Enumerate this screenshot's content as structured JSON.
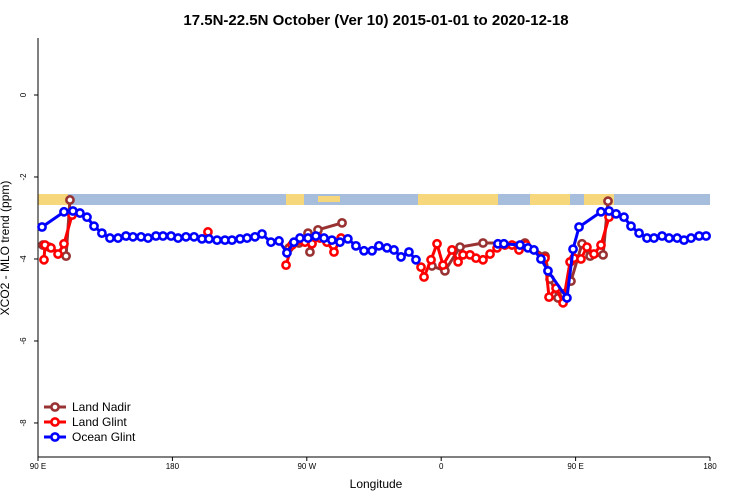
{
  "chart_data": {
    "type": "line",
    "title": "17.5N-22.5N October (Ver 10)   2015-01-01 to 2020-12-18",
    "x_label": "Longitude",
    "y_label": "XCO2 - MLO trend (ppm)",
    "xlim": [
      90,
      540
    ],
    "xticks": [
      {
        "value": 90,
        "label": "90 E"
      },
      180,
      {
        "value": 270,
        "label": "90 W"
      },
      {
        "value": 360,
        "label": "0"
      },
      {
        "value": 450,
        "label": "90 E"
      },
      {
        "value": 540,
        "label": "180"
      }
    ],
    "ylim": [
      -8.83,
      1.39
    ],
    "yticks": [
      0,
      -2,
      -4,
      -6,
      -8
    ],
    "grid": false,
    "legend": "bottom-left",
    "series": [
      {
        "name": "Land Nadir",
        "color": "#993333",
        "x": [
          93.3,
          97.4,
          108.8,
          111.4,
          null,
          258.1,
          264.8,
          270.8,
          272.1,
          277.5,
          293.6,
          null,
          353.8,
          362.5,
          372.6,
          388,
          416.1,
          429.5,
          432.9,
          438.2,
          442.2,
          446.9,
          454.3,
          459.7,
          468.4,
          471.7
        ],
        "values": [
          -3.66,
          -3.71,
          -3.93,
          -2.56,
          null,
          -3.73,
          -3.61,
          -3.37,
          -3.83,
          -3.29,
          -3.12,
          null,
          -4.17,
          -4.29,
          -3.71,
          -3.61,
          -3.61,
          -3.93,
          -4.49,
          -4.95,
          -4.85,
          -4.54,
          -3.63,
          -3.93,
          -3.9,
          -2.59
        ]
      },
      {
        "name": "Land Glint",
        "color": "#ff0000",
        "x": [
          94,
          94.7,
          98.7,
          103.4,
          107.4,
          112.8,
          null,
          203.8,
          null,
          256.1,
          260.1,
          268.8,
          273.5,
          278.8,
          283.5,
          288.2,
          292.9,
          null,
          346.5,
          348.5,
          353.2,
          357.2,
          361.2,
          367.2,
          371.3,
          374.6,
          379.3,
          383.3,
          388,
          392.7,
          397.4,
          402.7,
          407.4,
          412.1,
          416.8,
          429.5,
          432.2,
          436.9,
          441.6,
          446.3,
          448.9,
          453.6,
          457.6,
          462.3,
          467,
          472.4
        ],
        "values": [
          -4.02,
          -3.66,
          -3.73,
          -3.88,
          -3.63,
          -2.93,
          null,
          -3.34,
          null,
          -4.15,
          -3.66,
          -3.59,
          -3.63,
          -3.49,
          -3.59,
          -3.83,
          -3.49,
          null,
          -4.2,
          -4.44,
          -4.02,
          -3.63,
          -4.15,
          -3.78,
          -4.07,
          -3.9,
          -3.9,
          -3.98,
          -4.02,
          -3.88,
          -3.73,
          -3.66,
          -3.66,
          -3.78,
          -3.66,
          -3.98,
          -4.93,
          -4.71,
          -5.07,
          -4.07,
          -3.98,
          -4,
          -3.71,
          -3.88,
          -3.66,
          -2.98
        ]
      },
      {
        "name": "Ocean Glint",
        "color": "#0000ff",
        "x": [
          92.7,
          107.4,
          113.4,
          118.1,
          122.8,
          127.5,
          132.8,
          138.2,
          143.6,
          148.9,
          153.6,
          159,
          163.7,
          169,
          173.7,
          179.1,
          183.8,
          189.1,
          194.5,
          199.8,
          204.5,
          209.9,
          215.2,
          219.9,
          225.3,
          230,
          235.3,
          240,
          246,
          251.4,
          256.7,
          261.4,
          265.4,
          270.8,
          276.1,
          281.5,
          286.8,
          292.2,
          297.5,
          302.9,
          308.3,
          313.7,
          318.3,
          323.7,
          328.4,
          333.1,
          338.4,
          343.1,
          null,
          398,
          402,
          412.8,
          418.1,
          422.1,
          426.8,
          431.5,
          444.2,
          448.3,
          452.3,
          467,
          472.4,
          477.1,
          482.4,
          487.1,
          492.5,
          497.8,
          502.5,
          507.9,
          512.6,
          518,
          522.6,
          527.3,
          532.7,
          537.4
        ],
        "values": [
          -3.22,
          -2.85,
          -2.83,
          -2.88,
          -2.98,
          -3.2,
          -3.37,
          -3.49,
          -3.49,
          -3.44,
          -3.46,
          -3.46,
          -3.49,
          -3.44,
          -3.44,
          -3.44,
          -3.49,
          -3.46,
          -3.46,
          -3.51,
          -3.51,
          -3.54,
          -3.54,
          -3.54,
          -3.51,
          -3.49,
          -3.46,
          -3.39,
          -3.59,
          -3.56,
          -3.85,
          -3.59,
          -3.49,
          -3.49,
          -3.44,
          -3.49,
          -3.54,
          -3.59,
          -3.51,
          -3.68,
          -3.8,
          -3.8,
          -3.68,
          -3.73,
          -3.78,
          -3.95,
          -3.83,
          -4.02,
          null,
          -3.63,
          -3.63,
          -3.66,
          -3.73,
          -3.78,
          -4,
          -4.29,
          -4.95,
          -3.76,
          -3.22,
          -2.85,
          -2.83,
          -2.9,
          -2.98,
          -3.2,
          -3.37,
          -3.49,
          -3.49,
          -3.44,
          -3.49,
          -3.49,
          -3.54,
          -3.49,
          -3.44,
          -3.44
        ]
      }
    ]
  }
}
